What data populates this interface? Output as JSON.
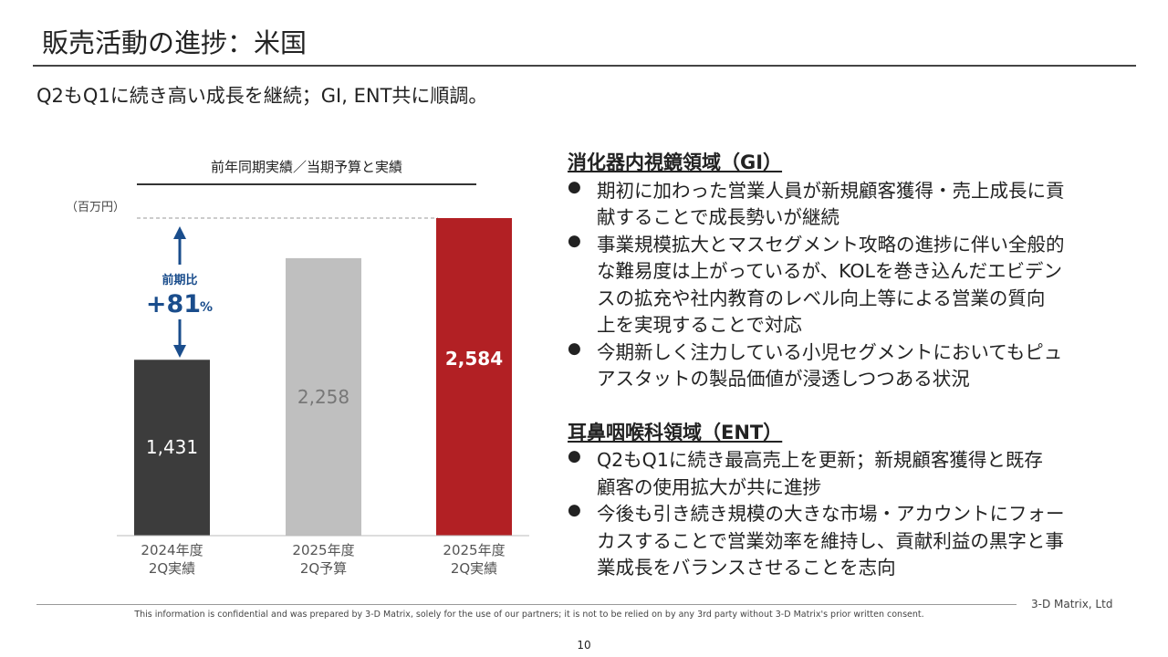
{
  "title": "販売活動の進捗：米国",
  "subtitle": "Q2もQ1に続き高い成長を継続；GI, ENT共に順調。",
  "chart_data": {
    "type": "bar",
    "title": "前年同期実績／当期予算と実績",
    "ylabel": "（百万円）",
    "categories": [
      "2024年度\n2Q実績",
      "2025年度\n2Q予算",
      "2025年度\n2Q実績"
    ],
    "category_lines": [
      [
        "2024年度",
        "2Q実績"
      ],
      [
        "2025年度",
        "2Q予算"
      ],
      [
        "2025年度",
        "2Q実績"
      ]
    ],
    "values": [
      1431,
      2258,
      2584
    ],
    "value_labels": [
      "1,431",
      "2,258",
      "2,584"
    ],
    "colors": [
      "#3c3c3c",
      "#bfbfbf",
      "#b22024"
    ],
    "label_colors": [
      "#ffffff",
      "#777777",
      "#ffffff"
    ],
    "ylim": [
      0,
      2584
    ],
    "annotation": {
      "label": "前期比",
      "value": "+81",
      "unit": "%",
      "color": "#1a4d8c"
    }
  },
  "sections": [
    {
      "heading": "消化器内視鏡領域（GI）",
      "bullets": [
        [
          "期初に加わった営業人員が新規顧客獲得・売上成長に貢",
          "献することで成長勢いが継続"
        ],
        [
          "事業規模拡大とマスセグメント攻略の進捗に伴い全般的",
          "な難易度は上がっているが、KOLを巻き込んだエビデン",
          "スの拡充や社内教育のレベル向上等による営業の質向",
          "上を実現することで対応"
        ],
        [
          "今期新しく注力している小児セグメントにおいてもピュ",
          "アスタットの製品価値が浸透しつつある状況"
        ]
      ]
    },
    {
      "heading": "耳鼻咽喉科領域（ENT）",
      "bullets": [
        [
          "Q2もQ1に続き最高売上を更新；新規顧客獲得と既存",
          "顧客の使用拡大が共に進捗"
        ],
        [
          "今後も引き続き規模の大きな市場・アカウントにフォー",
          "カスすることで営業効率を維持し、貢献利益の黒字と事",
          "業成長をバランスさせることを志向"
        ]
      ]
    }
  ],
  "footer": {
    "company": "3-D Matrix, Ltd",
    "disclaimer": "This information is confidential and was prepared by 3-D Matrix, solely for the use of our partners; it is not to be relied on by any 3rd party without 3-D Matrix's prior written consent.",
    "page": "10"
  }
}
